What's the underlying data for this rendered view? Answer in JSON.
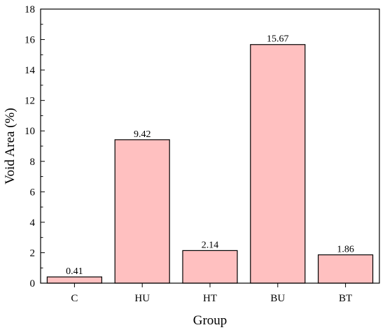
{
  "chart_data": {
    "type": "bar",
    "xlabel": "Group",
    "ylabel": "Void Area (%)",
    "categories": [
      "C",
      "HU",
      "HT",
      "BU",
      "BT"
    ],
    "values": [
      0.41,
      9.42,
      2.14,
      15.67,
      1.86
    ],
    "data_labels": [
      "0.41",
      "9.42",
      "2.14",
      "15.67",
      "1.86"
    ],
    "ylim": [
      0,
      18
    ],
    "yticks": [
      "0",
      "2",
      "4",
      "6",
      "8",
      "10",
      "12",
      "14",
      "16",
      "18"
    ],
    "grid": false,
    "colors": {
      "bar_fill": "#ffc0c0",
      "bar_stroke": "#000000"
    }
  }
}
